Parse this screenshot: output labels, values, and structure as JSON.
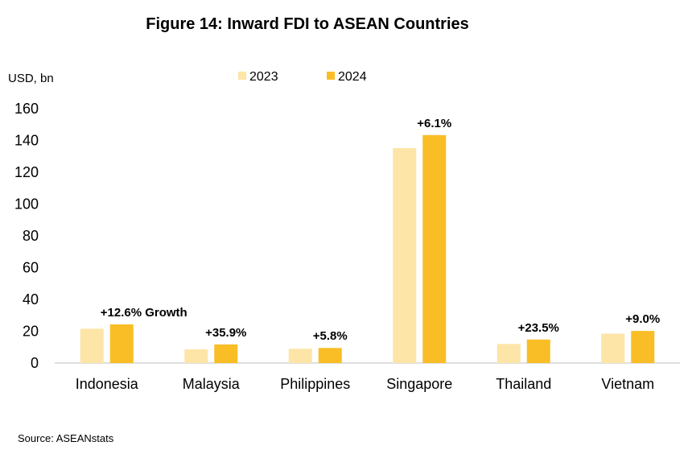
{
  "chart_data": {
    "type": "bar",
    "title": "Figure 14:   Inward FDI to ASEAN Countries",
    "ylabel": "USD, bn",
    "xlabel": "",
    "ylim": [
      0,
      160
    ],
    "yticks": [
      "0",
      "20",
      "40",
      "60",
      "80",
      "100",
      "120",
      "140",
      "160"
    ],
    "grid": false,
    "legend_position": "top-center",
    "categories": [
      "Indonesia",
      "Malaysia",
      "Philippines",
      "Singapore",
      "Thailand",
      "Vietnam"
    ],
    "series": [
      {
        "name": "2023",
        "color": "#FDE5A8",
        "values": [
          21.6,
          8.6,
          9.0,
          135.2,
          12.0,
          18.5
        ]
      },
      {
        "name": "2024",
        "color": "#F9BE26",
        "values": [
          24.3,
          11.7,
          9.5,
          143.4,
          14.8,
          20.2
        ]
      }
    ],
    "annotations": [
      "+12.6% Growth",
      "+35.9%",
      "+5.8%",
      "+6.1%",
      "+23.5%",
      "+9.0%"
    ],
    "source": "Source: ASEANstats"
  }
}
